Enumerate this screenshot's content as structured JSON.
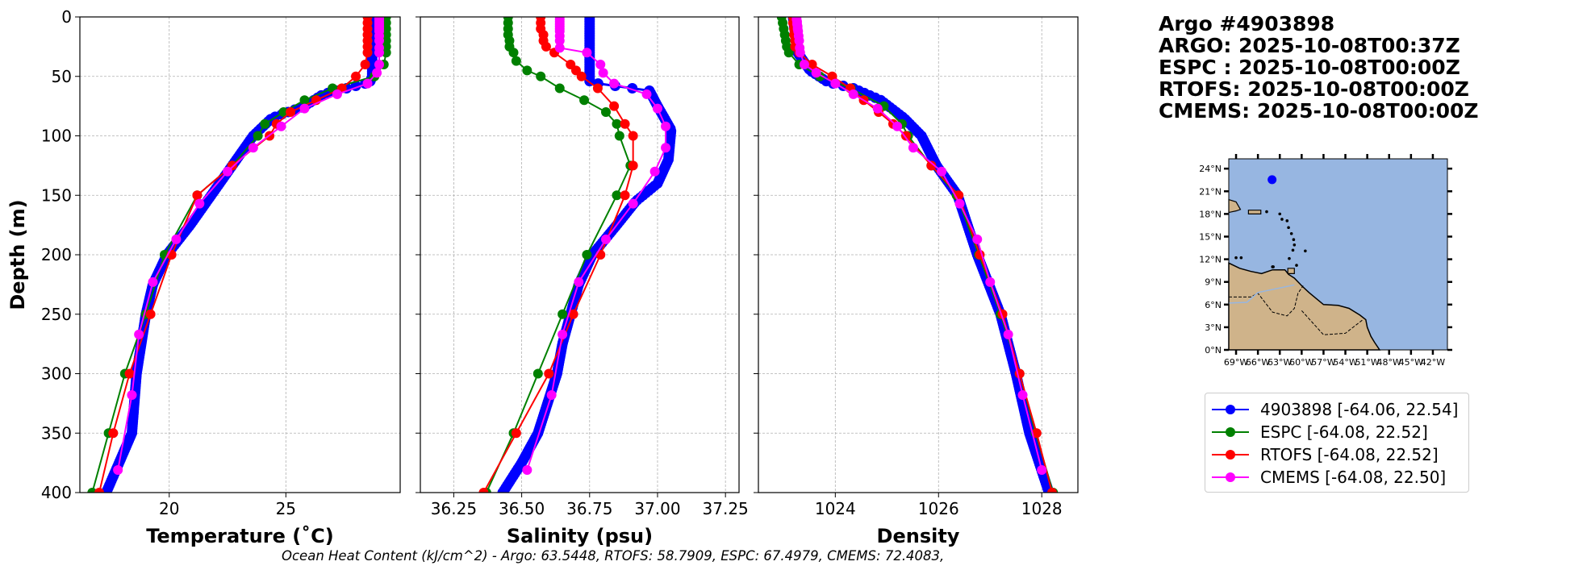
{
  "header": {
    "lines": [
      "Argo #4903898",
      "ARGO: 2025-10-08T00:37Z",
      "ESPC : 2025-10-08T00:00Z",
      "RTOFS: 2025-10-08T00:00Z",
      "CMEMS: 2025-10-08T00:00Z"
    ]
  },
  "footer": {
    "ohc_text": "Ocean Heat Content (kJ/cm^2) - Argo: 63.5448,  RTOFS: 58.7909,  ESPC: 67.4979,  CMEMS: 72.4083,"
  },
  "legend": [
    {
      "label": "4903898 [-64.06, 22.54]",
      "color": "#0000ff"
    },
    {
      "label": "ESPC [-64.08, 22.52]",
      "color": "#008000"
    },
    {
      "label": "RTOFS [-64.08, 22.52]",
      "color": "#ff0000"
    },
    {
      "label": "CMEMS [-64.08, 22.50]",
      "color": "#ff00ff"
    }
  ],
  "map": {
    "ocean_color": "#97b6e1",
    "land_color": "#cfb38a",
    "float_lon": -64.06,
    "float_lat": 22.54,
    "lon_range": [
      -70,
      -40
    ],
    "lat_range": [
      0,
      25.3
    ],
    "lat_ticks": [
      {
        "v": 0,
        "label": "0°N"
      },
      {
        "v": 3,
        "label": "3°N"
      },
      {
        "v": 6,
        "label": "6°N"
      },
      {
        "v": 9,
        "label": "9°N"
      },
      {
        "v": 12,
        "label": "12°N"
      },
      {
        "v": 15,
        "label": "15°N"
      },
      {
        "v": 18,
        "label": "18°N"
      },
      {
        "v": 21,
        "label": "21°N"
      },
      {
        "v": 24,
        "label": "24°N"
      }
    ],
    "lon_ticks": [
      {
        "v": -69,
        "label": "69°W"
      },
      {
        "v": -66,
        "label": "66°W"
      },
      {
        "v": -63,
        "label": "63°W"
      },
      {
        "v": -60,
        "label": "60°W"
      },
      {
        "v": -57,
        "label": "57°W"
      },
      {
        "v": -54,
        "label": "54°W"
      },
      {
        "v": -51,
        "label": "51°W"
      },
      {
        "v": -48,
        "label": "48°W"
      },
      {
        "v": -45,
        "label": "45°W"
      },
      {
        "v": -42,
        "label": "42°W"
      }
    ]
  },
  "chart_data": [
    {
      "type": "line",
      "title": "",
      "xlabel": "Temperature (˚C)",
      "ylabel": "Depth (m)",
      "xlim": [
        16.17,
        29.9
      ],
      "ylim": [
        400,
        0
      ],
      "xticks": [
        {
          "v": 20,
          "label": "20"
        },
        {
          "v": 25,
          "label": "25"
        }
      ],
      "yticks": [
        {
          "v": 0,
          "label": "0"
        },
        {
          "v": 50,
          "label": "50"
        },
        {
          "v": 100,
          "label": "100"
        },
        {
          "v": 150,
          "label": "150"
        },
        {
          "v": 200,
          "label": "200"
        },
        {
          "v": 250,
          "label": "250"
        },
        {
          "v": 300,
          "label": "300"
        },
        {
          "v": 350,
          "label": "350"
        },
        {
          "v": 400,
          "label": "400"
        }
      ],
      "grid": true,
      "series": [
        {
          "name": "4903898",
          "dense": true,
          "depth": [
            0,
            30,
            50,
            55,
            65,
            75,
            85,
            100,
            125,
            150,
            175,
            200,
            225,
            250,
            275,
            300,
            350,
            400
          ],
          "values": [
            28.7,
            28.7,
            28.7,
            28.6,
            26.6,
            25.8,
            24.4,
            23.6,
            22.7,
            21.8,
            20.9,
            19.9,
            19.3,
            19.0,
            18.8,
            18.6,
            18.4,
            17.3
          ]
        },
        {
          "name": "ESPC",
          "depth": [
            0,
            5,
            10,
            15,
            20,
            25,
            30,
            40,
            50,
            60,
            70,
            80,
            90,
            100,
            125,
            150,
            200,
            250,
            300,
            350,
            400
          ],
          "values": [
            29.3,
            29.3,
            29.3,
            29.3,
            29.3,
            29.3,
            29.3,
            29.2,
            28.8,
            27.0,
            25.8,
            24.9,
            24.1,
            23.8,
            22.7,
            21.2,
            19.8,
            19.0,
            18.1,
            17.4,
            16.7
          ]
        },
        {
          "name": "RTOFS",
          "depth": [
            0,
            5,
            10,
            15,
            20,
            25,
            30,
            40,
            50,
            60,
            70,
            80,
            90,
            100,
            125,
            150,
            200,
            250,
            300,
            350,
            400
          ],
          "values": [
            28.5,
            28.5,
            28.5,
            28.5,
            28.5,
            28.5,
            28.5,
            28.4,
            28.0,
            27.4,
            26.3,
            25.2,
            24.6,
            24.3,
            22.7,
            21.2,
            20.1,
            19.2,
            18.3,
            17.6,
            17.0
          ]
        },
        {
          "name": "CMEMS",
          "depth": [
            0,
            2,
            4,
            6,
            8,
            10,
            12,
            16,
            20,
            26,
            30,
            40,
            47,
            56,
            65,
            77,
            92,
            110,
            130,
            157,
            187,
            223,
            267,
            318,
            381
          ],
          "values": [
            29.0,
            29.0,
            29.0,
            29.0,
            29.0,
            29.0,
            29.0,
            29.0,
            29.0,
            29.0,
            29.0,
            29.0,
            28.9,
            28.5,
            27.2,
            25.8,
            24.8,
            23.6,
            22.5,
            21.3,
            20.3,
            19.3,
            18.7,
            18.4,
            17.8
          ]
        }
      ]
    },
    {
      "type": "line",
      "title": "",
      "xlabel": "Salinity (psu)",
      "ylabel": "",
      "xlim": [
        36.127,
        37.3
      ],
      "ylim": [
        400,
        0
      ],
      "xticks": [
        {
          "v": 36.25,
          "label": "36.25"
        },
        {
          "v": 36.5,
          "label": "36.50"
        },
        {
          "v": 36.75,
          "label": "36.75"
        },
        {
          "v": 37.0,
          "label": "37.00"
        },
        {
          "v": 37.25,
          "label": "37.25"
        }
      ],
      "grid": true,
      "series": [
        {
          "name": "4903898",
          "dense": true,
          "depth": [
            0,
            55,
            62,
            75,
            95,
            120,
            140,
            155,
            175,
            200,
            225,
            250,
            275,
            300,
            350,
            375,
            400
          ],
          "values": [
            36.75,
            36.75,
            36.97,
            37.0,
            37.05,
            37.04,
            37.0,
            36.92,
            36.85,
            36.76,
            36.71,
            36.68,
            36.65,
            36.63,
            36.56,
            36.5,
            36.43
          ]
        },
        {
          "name": "ESPC",
          "depth": [
            0,
            5,
            10,
            15,
            20,
            25,
            30,
            37,
            45,
            50,
            60,
            70,
            80,
            90,
            100,
            125,
            150,
            200,
            250,
            300,
            350,
            400
          ],
          "values": [
            36.45,
            36.45,
            36.45,
            36.45,
            36.455,
            36.455,
            36.47,
            36.48,
            36.52,
            36.57,
            36.64,
            36.73,
            36.81,
            36.85,
            36.86,
            36.9,
            36.85,
            36.74,
            36.65,
            36.56,
            36.47,
            36.37
          ]
        },
        {
          "name": "RTOFS",
          "depth": [
            0,
            5,
            10,
            15,
            20,
            25,
            30,
            40,
            45,
            50,
            60,
            75,
            90,
            100,
            125,
            150,
            200,
            250,
            300,
            350,
            400
          ],
          "values": [
            36.57,
            36.57,
            36.57,
            36.58,
            36.58,
            36.59,
            36.62,
            36.68,
            36.7,
            36.72,
            36.78,
            36.84,
            36.88,
            36.91,
            36.91,
            36.88,
            36.79,
            36.69,
            36.6,
            36.48,
            36.36
          ]
        },
        {
          "name": "CMEMS",
          "depth": [
            0,
            2,
            4,
            6,
            8,
            10,
            12,
            16,
            20,
            26,
            30,
            40,
            47,
            56,
            65,
            77,
            92,
            110,
            130,
            157,
            187,
            223,
            267,
            318,
            381
          ],
          "values": [
            36.64,
            36.64,
            36.64,
            36.64,
            36.64,
            36.64,
            36.64,
            36.64,
            36.64,
            36.64,
            36.74,
            36.79,
            36.8,
            36.84,
            36.96,
            37.0,
            37.03,
            37.03,
            36.99,
            36.91,
            36.81,
            36.71,
            36.65,
            36.61,
            36.52
          ]
        }
      ]
    },
    {
      "type": "line",
      "title": "",
      "xlabel": "Density",
      "ylabel": "",
      "xlim": [
        1022.51,
        1028.7
      ],
      "ylim": [
        400,
        0
      ],
      "xticks": [
        {
          "v": 1024,
          "label": "1024"
        },
        {
          "v": 1026,
          "label": "1026"
        },
        {
          "v": 1028,
          "label": "1028"
        }
      ],
      "grid": true,
      "series": [
        {
          "name": "4903898",
          "dense": true,
          "depth": [
            0,
            30,
            45,
            55,
            60,
            70,
            85,
            100,
            125,
            150,
            200,
            250,
            300,
            350,
            400
          ],
          "values": [
            1023.18,
            1023.27,
            1023.51,
            1023.86,
            1024.35,
            1024.88,
            1025.33,
            1025.67,
            1025.96,
            1026.37,
            1026.75,
            1027.2,
            1027.5,
            1027.76,
            1028.14
          ]
        },
        {
          "name": "ESPC",
          "depth": [
            0,
            5,
            10,
            15,
            20,
            25,
            30,
            40,
            50,
            60,
            75,
            90,
            100,
            125,
            150,
            200,
            250,
            300,
            350,
            400
          ],
          "values": [
            1022.96,
            1022.98,
            1023.0,
            1023.02,
            1023.04,
            1023.06,
            1023.1,
            1023.3,
            1023.7,
            1024.3,
            1024.94,
            1025.29,
            1025.41,
            1025.86,
            1026.35,
            1026.78,
            1027.2,
            1027.57,
            1027.88,
            1028.22
          ]
        },
        {
          "name": "RTOFS",
          "depth": [
            0,
            5,
            10,
            15,
            20,
            25,
            30,
            40,
            50,
            60,
            70,
            80,
            90,
            100,
            125,
            150,
            200,
            250,
            300,
            350,
            400
          ],
          "values": [
            1023.18,
            1023.18,
            1023.2,
            1023.2,
            1023.22,
            1023.22,
            1023.3,
            1023.55,
            1023.94,
            1024.29,
            1024.55,
            1024.84,
            1025.12,
            1025.37,
            1025.86,
            1026.39,
            1026.8,
            1027.24,
            1027.57,
            1027.9,
            1028.2
          ]
        },
        {
          "name": "CMEMS",
          "depth": [
            0,
            2,
            4,
            6,
            8,
            10,
            12,
            16,
            20,
            26,
            30,
            40,
            47,
            56,
            65,
            77,
            92,
            110,
            130,
            157,
            187,
            223,
            267,
            318,
            381
          ],
          "values": [
            1023.25,
            1023.25,
            1023.26,
            1023.26,
            1023.27,
            1023.27,
            1023.28,
            1023.29,
            1023.3,
            1023.31,
            1023.32,
            1023.4,
            1023.63,
            1024.0,
            1024.35,
            1024.82,
            1025.2,
            1025.51,
            1026.06,
            1026.41,
            1026.75,
            1027.0,
            1027.35,
            1027.63,
            1028.0
          ]
        }
      ]
    }
  ]
}
